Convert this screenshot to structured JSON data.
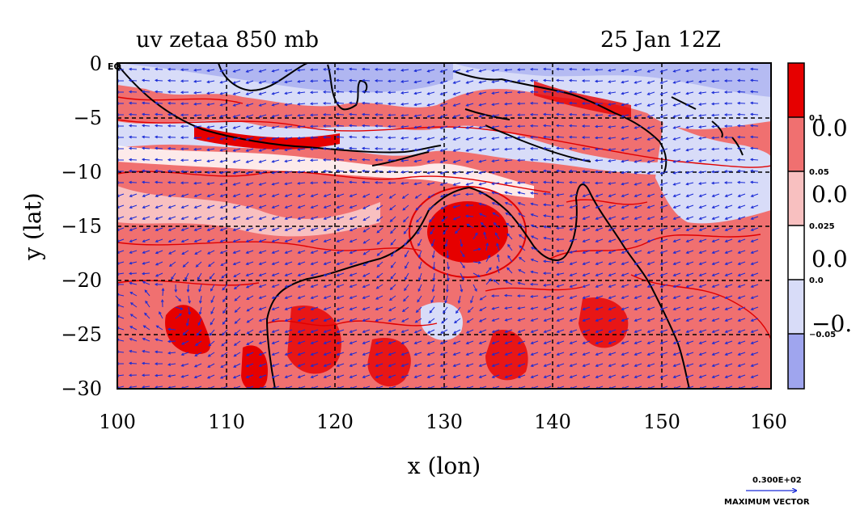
{
  "title_left": "uv zetaa 850 mb",
  "title_right": "25 Jan 12Z",
  "eq_label": "EQ",
  "x_label": "x (lon)",
  "y_label": "y (lat)",
  "x_ticks": [
    "100",
    "110",
    "120",
    "130",
    "140",
    "150",
    "160"
  ],
  "y_ticks": [
    "0",
    "−5",
    "−10",
    "−15",
    "−20",
    "−25",
    "−30"
  ],
  "colorbar": {
    "small_labels": [
      "0.1",
      "0.05",
      "0.025",
      "0.0",
      "−0.05"
    ],
    "large_labels": [
      "0.0",
      "0.0",
      "0.0",
      "−0."
    ],
    "colors": [
      "#e60000",
      "#f07070",
      "#f8c0c0",
      "#ffffff",
      "#d8dcf8",
      "#9fa5ee"
    ]
  },
  "vector_key": {
    "value": "0.300E+02",
    "label": "MAXIMUM VECTOR"
  },
  "colors": {
    "vector": "#1a2bd6",
    "coast": "#000000",
    "contour": "#e00000"
  },
  "map_data": {
    "lon_range": [
      100,
      160
    ],
    "lat_range": [
      -30,
      0
    ],
    "grid_lon": [
      110,
      120,
      130,
      140,
      150
    ],
    "grid_lat": [
      -5,
      -10,
      -15,
      -20,
      -25
    ]
  }
}
